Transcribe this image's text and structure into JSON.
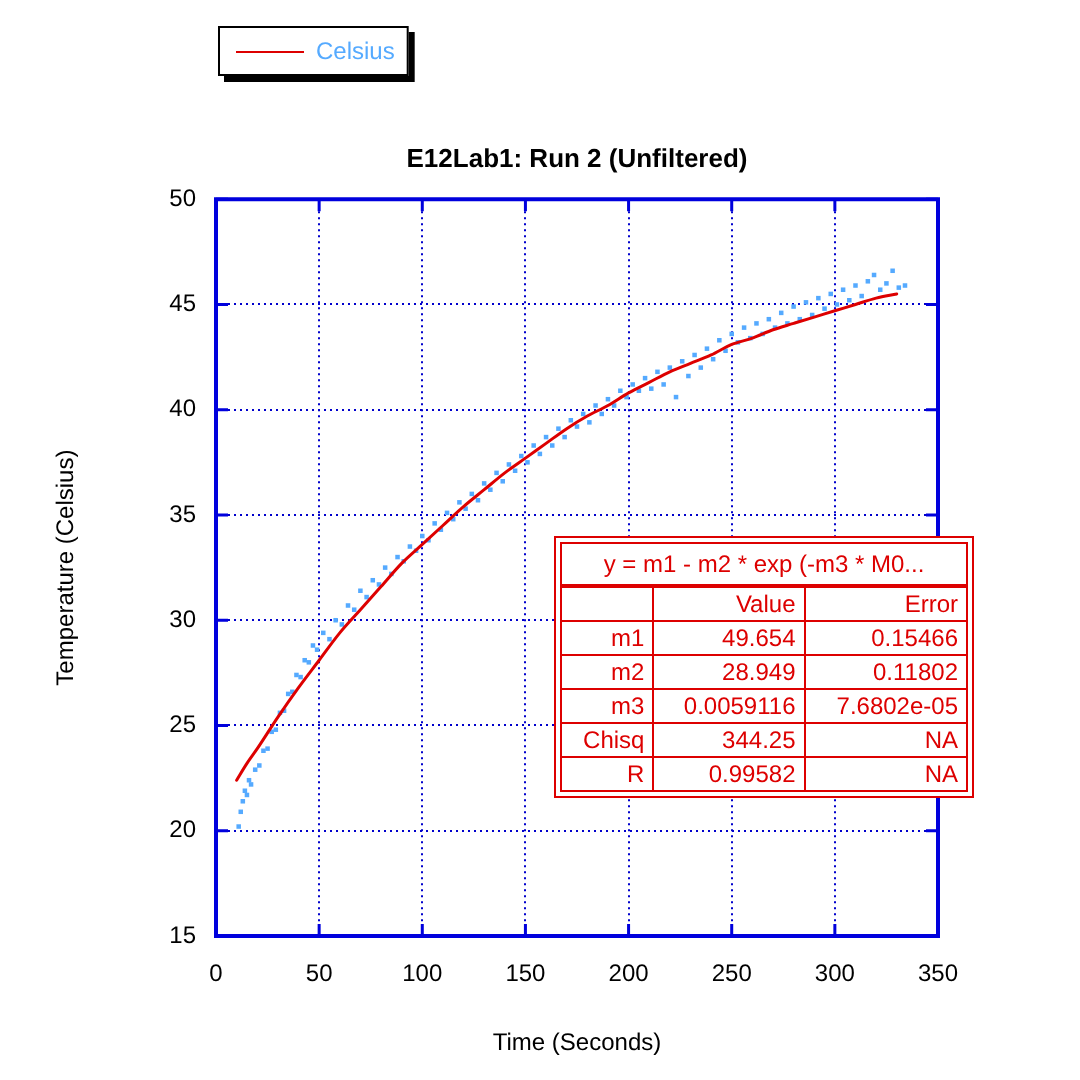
{
  "chart_data": {
    "type": "scatter",
    "title": "E12Lab1: Run 2 (Unfiltered)",
    "xlabel": "Time (Seconds)",
    "ylabel": "Temperature (Celsius)",
    "xlim": [
      0,
      350
    ],
    "xticks": [
      0,
      50,
      100,
      150,
      200,
      250,
      300,
      350
    ],
    "ylim": [
      15,
      50
    ],
    "yticks": [
      15,
      20,
      25,
      30,
      35,
      40,
      45,
      50
    ],
    "grid": true,
    "legend": "top left",
    "marker": "square",
    "series": [
      {
        "name": "Celsius",
        "color": "#55aaff",
        "x": [
          11,
          12,
          13,
          14,
          15,
          16,
          17,
          19,
          21,
          23,
          25,
          27,
          29,
          31,
          33,
          35,
          37,
          39,
          41,
          43,
          45,
          47,
          49,
          52,
          55,
          58,
          61,
          64,
          67,
          70,
          73,
          76,
          79,
          82,
          85,
          88,
          91,
          94,
          97,
          100,
          103,
          106,
          109,
          112,
          115,
          118,
          121,
          124,
          127,
          130,
          133,
          136,
          139,
          142,
          145,
          148,
          151,
          154,
          157,
          160,
          163,
          166,
          169,
          172,
          175,
          178,
          181,
          184,
          187,
          190,
          193,
          196,
          199,
          202,
          205,
          208,
          211,
          214,
          217,
          220,
          223,
          226,
          229,
          232,
          235,
          238,
          241,
          244,
          247,
          250,
          253,
          256,
          259,
          262,
          265,
          268,
          271,
          274,
          277,
          280,
          283,
          286,
          289,
          292,
          295,
          298,
          301,
          304,
          307,
          310,
          313,
          316,
          319,
          322,
          325,
          328,
          331,
          334
        ],
        "values": [
          20.2,
          20.9,
          21.4,
          21.9,
          21.7,
          22.4,
          22.2,
          22.9,
          23.1,
          23.8,
          23.9,
          24.7,
          24.8,
          25.6,
          25.7,
          26.5,
          26.6,
          27.4,
          27.3,
          28.1,
          28.0,
          28.8,
          28.6,
          29.4,
          29.1,
          30.0,
          29.8,
          30.7,
          30.5,
          31.4,
          31.1,
          31.9,
          31.7,
          32.5,
          32.2,
          33.0,
          32.8,
          33.5,
          33.3,
          34.0,
          33.8,
          34.6,
          34.3,
          35.1,
          34.8,
          35.6,
          35.3,
          36.0,
          35.7,
          36.5,
          36.2,
          37.0,
          36.6,
          37.4,
          37.1,
          37.8,
          37.5,
          38.3,
          37.9,
          38.7,
          38.3,
          39.1,
          38.7,
          39.5,
          39.2,
          39.8,
          39.4,
          40.2,
          39.8,
          40.5,
          40.2,
          40.9,
          40.6,
          41.2,
          40.9,
          41.5,
          41.0,
          41.8,
          41.2,
          42.0,
          40.6,
          42.3,
          41.6,
          42.6,
          42.0,
          42.9,
          42.4,
          43.3,
          42.8,
          43.6,
          43.2,
          43.9,
          43.4,
          44.1,
          43.6,
          44.3,
          43.9,
          44.6,
          44.1,
          44.9,
          44.3,
          45.1,
          44.5,
          45.3,
          44.8,
          45.5,
          45.0,
          45.7,
          45.2,
          45.9,
          45.4,
          46.1,
          46.4,
          45.7,
          46.0,
          46.6,
          45.8,
          45.9
        ]
      },
      {
        "type": "line",
        "color": "#dd0000",
        "marker": "none",
        "x": [
          10,
          15,
          20,
          30,
          40,
          50,
          60,
          70,
          80,
          90,
          100,
          110,
          120,
          130,
          140,
          150,
          160,
          170,
          180,
          190,
          200,
          210,
          220,
          230,
          240,
          250,
          260,
          270,
          280,
          290,
          300,
          310,
          320,
          330
        ],
        "values": [
          22.4,
          23.2,
          23.9,
          25.4,
          26.8,
          28.1,
          29.4,
          30.5,
          31.6,
          32.7,
          33.6,
          34.5,
          35.4,
          36.2,
          37.0,
          37.7,
          38.4,
          39.1,
          39.7,
          40.2,
          40.8,
          41.3,
          41.8,
          42.2,
          42.6,
          43.1,
          43.4,
          43.8,
          44.1,
          44.4,
          44.7,
          45.0,
          45.3,
          45.5
        ]
      }
    ],
    "annotations": [
      "y = m1 - m2 * exp (-m3 * M0...",
      "Value",
      "Error",
      "m1",
      "49.654",
      "0.15466",
      "m2",
      "28.949",
      "0.11802",
      "m3",
      "0.0059116",
      "7.6802e-05",
      "Chisq",
      "344.25",
      "NA",
      "R",
      "0.99582",
      "NA"
    ]
  }
}
